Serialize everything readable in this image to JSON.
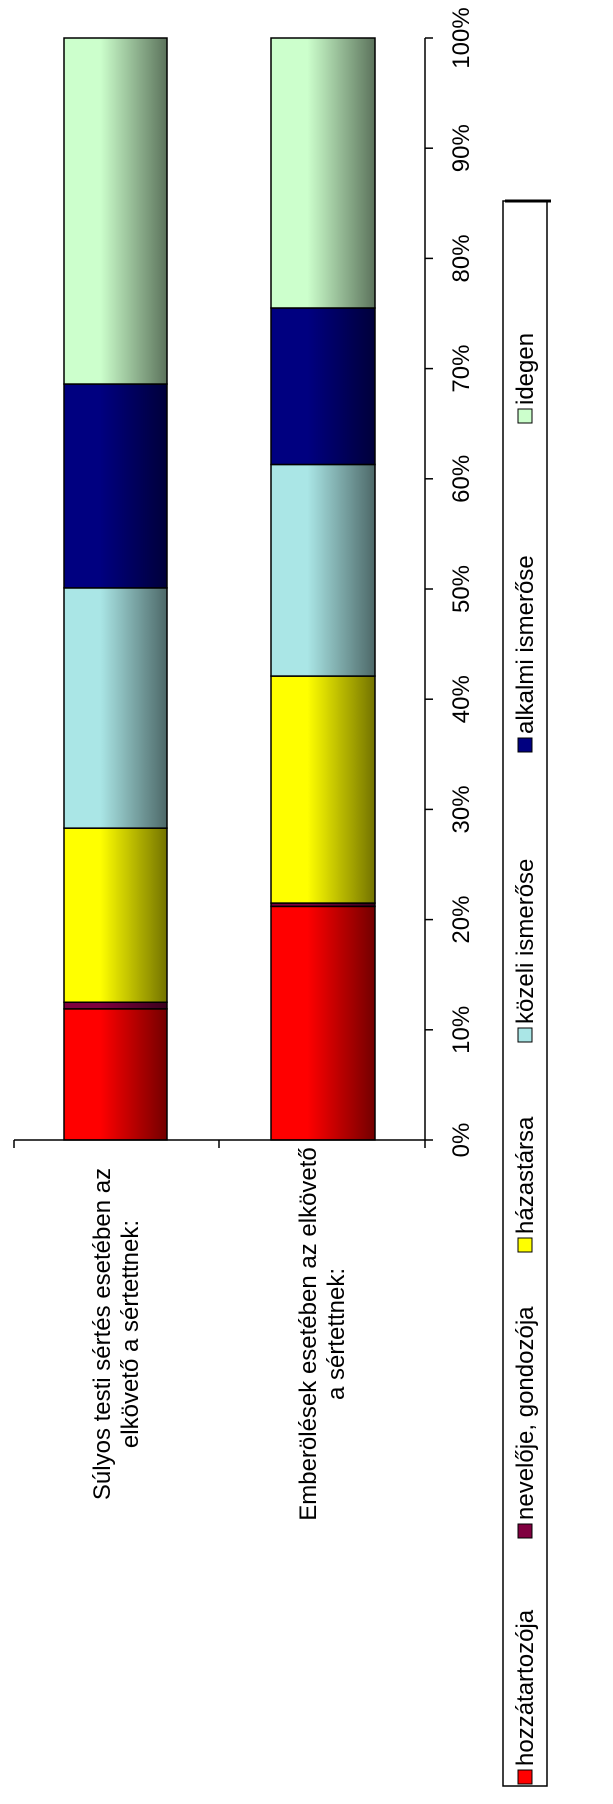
{
  "chart_data": {
    "type": "bar",
    "orientation": "horizontal",
    "stacked": "percent",
    "categories": [
      "Súlyos testi sértés esetében az elkövető a sértettnek:",
      "Emberölések esetében az elkövető a sértettnek:"
    ],
    "category_lines": [
      [
        "Súlyos testi sértés esetében az",
        "elkövető a sértettnek:"
      ],
      [
        "Emberölések esetében az elkövető",
        "a sértettnek:"
      ]
    ],
    "series": [
      {
        "name": "hozzátartozója",
        "color": "#ff0000",
        "values": [
          11.9,
          21.2
        ]
      },
      {
        "name": "nevelője, gondozója",
        "color": "#800040",
        "values": [
          0.6,
          0.3
        ]
      },
      {
        "name": "házastársa",
        "color": "#ffff00",
        "values": [
          15.8,
          20.6
        ]
      },
      {
        "name": "közeli ismerőse",
        "color": "#aae6e6",
        "values": [
          21.8,
          19.2
        ]
      },
      {
        "name": "alkalmi ismerőse",
        "color": "#000080",
        "values": [
          18.5,
          14.2
        ]
      },
      {
        "name": "idegen",
        "color": "#ccffcc",
        "values": [
          31.4,
          24.5
        ]
      }
    ],
    "xlim": [
      0,
      100
    ],
    "x_ticks": [
      "0%",
      "10%",
      "20%",
      "30%",
      "40%",
      "50%",
      "60%",
      "70%",
      "80%",
      "90%",
      "100%"
    ],
    "legend_position": "bottom",
    "grid": false
  }
}
